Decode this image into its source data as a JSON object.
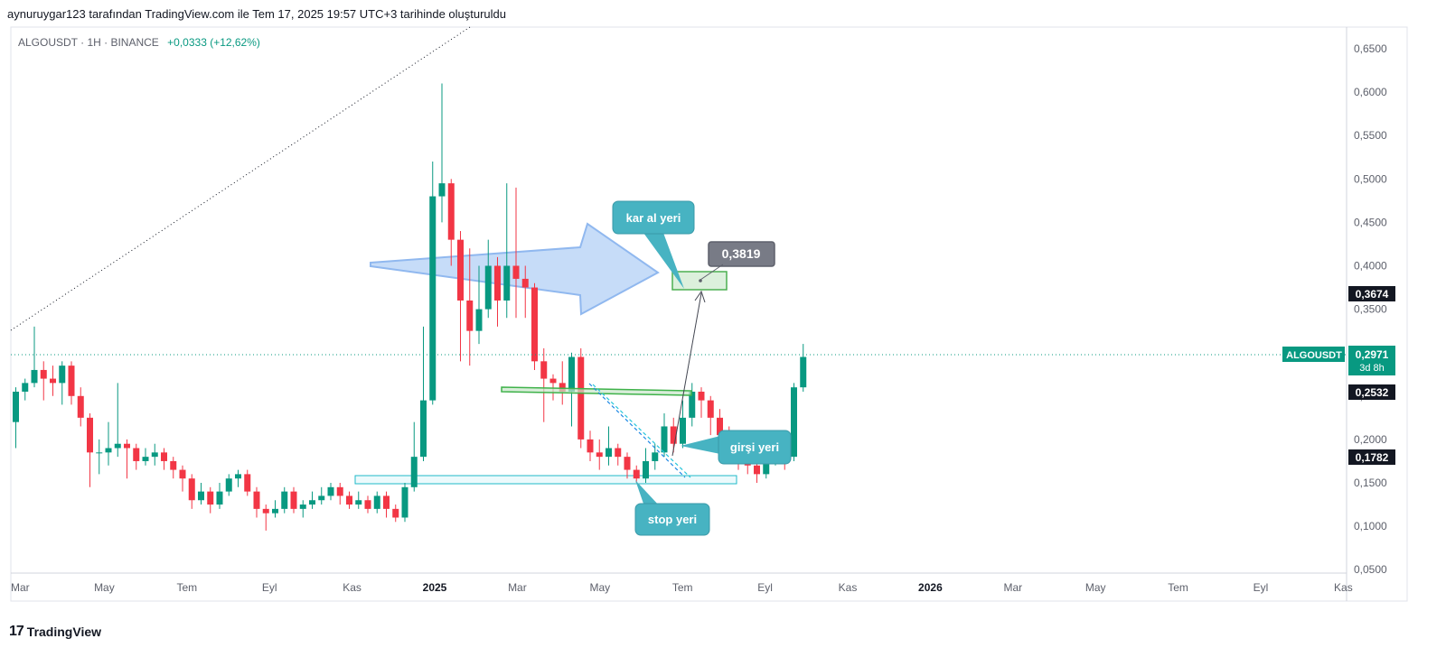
{
  "header": {
    "caption": "aynuruygar123 tarafından TradingView.com ile Tem 17, 2025 19:57 UTC+3 tarihinde oluşturuldu",
    "symbol": "ALGOUSDT · 1H · BINANCE",
    "change": "+0,0333 (+12,62%)"
  },
  "footer": {
    "logo_mark": "17",
    "logo_text": "TradingView"
  },
  "colors": {
    "up": "#089981",
    "down": "#f23645",
    "note_bg": "#47b3c2",
    "arrow_fill": "#bcd6f7",
    "arrow_stroke": "#90b8ef",
    "support_zone": "#1fb9c9",
    "resistance_line": "#3fb24a",
    "target_box": "#4caf50"
  },
  "chart_data": {
    "type": "candlestick",
    "symbol": "ALGOUSDT",
    "exchange": "BINANCE",
    "ylim": [
      0.04,
      0.67
    ],
    "y_ticks": [
      "0,6500",
      "0,6000",
      "0,5500",
      "0,5000",
      "0,4500",
      "0,4000",
      "0,3500",
      "0,3000",
      "0,2500",
      "0,2000",
      "0,1500",
      "0,1000",
      "0,0500"
    ],
    "x_labels": [
      {
        "label": "Mar",
        "t": 0,
        "year": false
      },
      {
        "label": "May",
        "t": 2,
        "year": false
      },
      {
        "label": "Tem",
        "t": 4,
        "year": false
      },
      {
        "label": "Eyl",
        "t": 6,
        "year": false
      },
      {
        "label": "Kas",
        "t": 8,
        "year": false
      },
      {
        "label": "2025",
        "t": 10,
        "year": true
      },
      {
        "label": "Mar",
        "t": 12,
        "year": false
      },
      {
        "label": "May",
        "t": 14,
        "year": false
      },
      {
        "label": "Tem",
        "t": 16,
        "year": false
      },
      {
        "label": "Eyl",
        "t": 18,
        "year": false
      },
      {
        "label": "Kas",
        "t": 20,
        "year": false
      },
      {
        "label": "2026",
        "t": 22,
        "year": true
      },
      {
        "label": "Mar",
        "t": 24,
        "year": false
      },
      {
        "label": "May",
        "t": 26,
        "year": false
      },
      {
        "label": "Tem",
        "t": 28,
        "year": false
      },
      {
        "label": "Eyl",
        "t": 30,
        "year": false
      },
      {
        "label": "Kas",
        "t": 32,
        "year": false
      }
    ],
    "candles": [
      [
        0.22,
        0.255,
        0.19,
        0.26
      ],
      [
        0.255,
        0.265,
        0.245,
        0.27
      ],
      [
        0.265,
        0.28,
        0.26,
        0.33
      ],
      [
        0.28,
        0.27,
        0.245,
        0.29
      ],
      [
        0.27,
        0.265,
        0.25,
        0.285
      ],
      [
        0.265,
        0.285,
        0.24,
        0.29
      ],
      [
        0.285,
        0.25,
        0.24,
        0.29
      ],
      [
        0.25,
        0.225,
        0.215,
        0.26
      ],
      [
        0.225,
        0.185,
        0.145,
        0.23
      ],
      [
        0.185,
        0.185,
        0.16,
        0.2
      ],
      [
        0.185,
        0.19,
        0.17,
        0.22
      ],
      [
        0.19,
        0.195,
        0.18,
        0.265
      ],
      [
        0.195,
        0.19,
        0.155,
        0.2
      ],
      [
        0.19,
        0.175,
        0.165,
        0.195
      ],
      [
        0.175,
        0.18,
        0.17,
        0.19
      ],
      [
        0.18,
        0.185,
        0.17,
        0.195
      ],
      [
        0.185,
        0.175,
        0.165,
        0.19
      ],
      [
        0.175,
        0.165,
        0.155,
        0.18
      ],
      [
        0.165,
        0.155,
        0.14,
        0.17
      ],
      [
        0.155,
        0.13,
        0.12,
        0.16
      ],
      [
        0.13,
        0.14,
        0.125,
        0.15
      ],
      [
        0.14,
        0.125,
        0.115,
        0.145
      ],
      [
        0.125,
        0.14,
        0.12,
        0.15
      ],
      [
        0.14,
        0.155,
        0.135,
        0.16
      ],
      [
        0.155,
        0.16,
        0.145,
        0.165
      ],
      [
        0.16,
        0.14,
        0.135,
        0.165
      ],
      [
        0.14,
        0.12,
        0.11,
        0.145
      ],
      [
        0.12,
        0.115,
        0.095,
        0.125
      ],
      [
        0.115,
        0.12,
        0.11,
        0.13
      ],
      [
        0.12,
        0.14,
        0.115,
        0.145
      ],
      [
        0.14,
        0.12,
        0.115,
        0.145
      ],
      [
        0.12,
        0.125,
        0.11,
        0.13
      ],
      [
        0.125,
        0.13,
        0.12,
        0.14
      ],
      [
        0.13,
        0.135,
        0.125,
        0.145
      ],
      [
        0.135,
        0.145,
        0.13,
        0.15
      ],
      [
        0.145,
        0.135,
        0.125,
        0.15
      ],
      [
        0.135,
        0.125,
        0.12,
        0.14
      ],
      [
        0.125,
        0.13,
        0.12,
        0.14
      ],
      [
        0.13,
        0.12,
        0.115,
        0.135
      ],
      [
        0.12,
        0.135,
        0.115,
        0.14
      ],
      [
        0.135,
        0.12,
        0.11,
        0.14
      ],
      [
        0.12,
        0.11,
        0.105,
        0.125
      ],
      [
        0.11,
        0.145,
        0.105,
        0.15
      ],
      [
        0.145,
        0.18,
        0.14,
        0.22
      ],
      [
        0.18,
        0.245,
        0.175,
        0.33
      ],
      [
        0.245,
        0.48,
        0.24,
        0.52
      ],
      [
        0.48,
        0.495,
        0.45,
        0.61
      ],
      [
        0.495,
        0.43,
        0.4,
        0.5
      ],
      [
        0.43,
        0.36,
        0.29,
        0.44
      ],
      [
        0.36,
        0.325,
        0.285,
        0.42
      ],
      [
        0.325,
        0.35,
        0.31,
        0.4
      ],
      [
        0.35,
        0.4,
        0.34,
        0.43
      ],
      [
        0.4,
        0.36,
        0.33,
        0.41
      ],
      [
        0.36,
        0.4,
        0.34,
        0.495
      ],
      [
        0.4,
        0.385,
        0.34,
        0.49
      ],
      [
        0.385,
        0.375,
        0.34,
        0.4
      ],
      [
        0.375,
        0.29,
        0.28,
        0.38
      ],
      [
        0.29,
        0.27,
        0.22,
        0.305
      ],
      [
        0.27,
        0.265,
        0.245,
        0.275
      ],
      [
        0.265,
        0.255,
        0.24,
        0.29
      ],
      [
        0.255,
        0.295,
        0.215,
        0.3
      ],
      [
        0.295,
        0.2,
        0.19,
        0.305
      ],
      [
        0.2,
        0.185,
        0.175,
        0.21
      ],
      [
        0.185,
        0.18,
        0.165,
        0.2
      ],
      [
        0.18,
        0.19,
        0.17,
        0.215
      ],
      [
        0.19,
        0.18,
        0.17,
        0.195
      ],
      [
        0.18,
        0.165,
        0.155,
        0.185
      ],
      [
        0.165,
        0.155,
        0.15,
        0.17
      ],
      [
        0.155,
        0.175,
        0.15,
        0.19
      ],
      [
        0.175,
        0.185,
        0.165,
        0.195
      ],
      [
        0.185,
        0.215,
        0.18,
        0.23
      ],
      [
        0.215,
        0.195,
        0.185,
        0.225
      ],
      [
        0.195,
        0.225,
        0.19,
        0.245
      ],
      [
        0.225,
        0.255,
        0.215,
        0.265
      ],
      [
        0.255,
        0.245,
        0.225,
        0.26
      ],
      [
        0.245,
        0.225,
        0.205,
        0.25
      ],
      [
        0.225,
        0.205,
        0.19,
        0.235
      ],
      [
        0.205,
        0.19,
        0.18,
        0.215
      ],
      [
        0.19,
        0.18,
        0.165,
        0.2
      ],
      [
        0.18,
        0.17,
        0.16,
        0.19
      ],
      [
        0.17,
        0.16,
        0.15,
        0.18
      ],
      [
        0.16,
        0.175,
        0.155,
        0.18
      ],
      [
        0.175,
        0.185,
        0.17,
        0.195
      ],
      [
        0.185,
        0.18,
        0.165,
        0.19
      ],
      [
        0.18,
        0.26,
        0.175,
        0.265
      ],
      [
        0.26,
        0.295,
        0.255,
        0.31
      ]
    ],
    "last_price": "0,2971",
    "countdown": "3d 8h",
    "price_badges": [
      "0,3674",
      "0,2532",
      "0,1782"
    ],
    "target_label": "0,3819",
    "annotations": [
      "kar al yeri",
      "girşi yeri",
      "stop yeri"
    ]
  }
}
